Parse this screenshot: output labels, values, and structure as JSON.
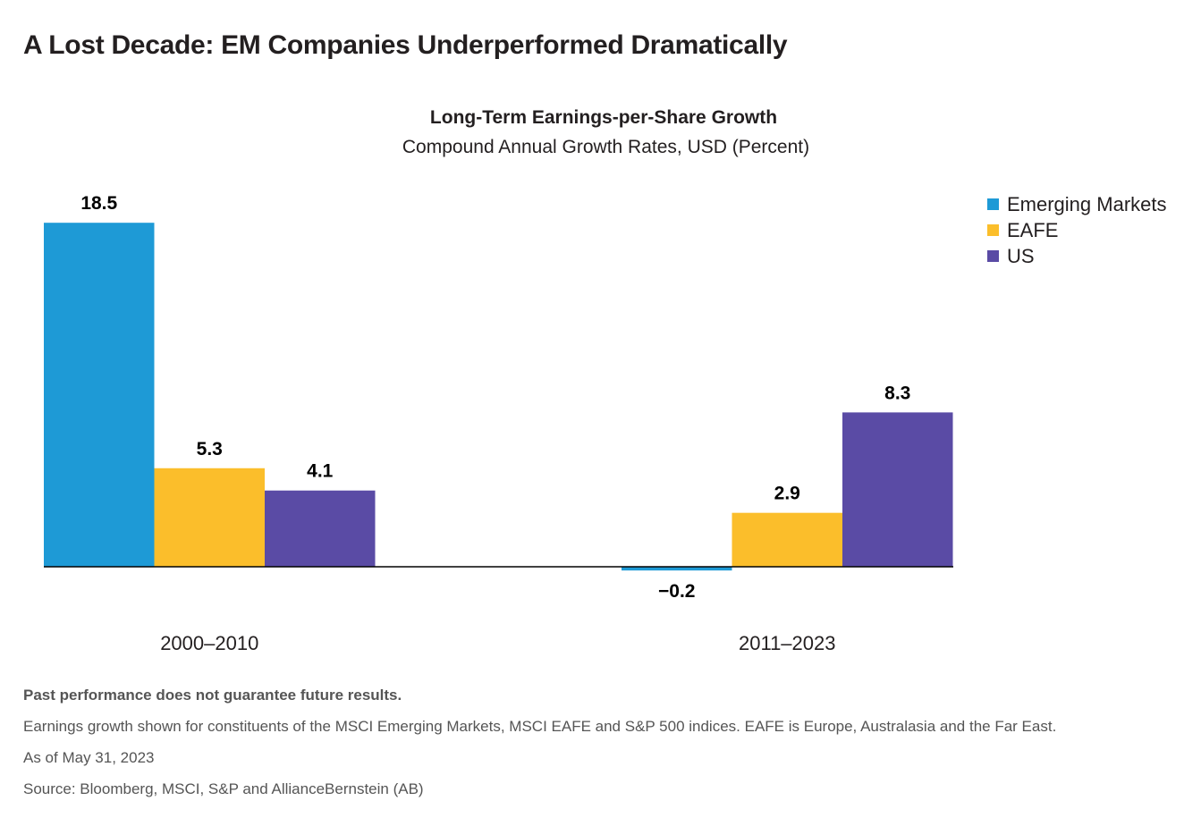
{
  "headline": "A Lost Decade: EM Companies Underperformed Dramatically",
  "chart_data": {
    "type": "bar",
    "title": "Long-Term Earnings-per-Share Growth",
    "subtitle": "Compound Annual Growth Rates, USD (Percent)",
    "categories": [
      "2000–2010",
      "2011–2023"
    ],
    "series": [
      {
        "name": "Emerging Markets",
        "color": "#1e9ad6",
        "values": [
          18.5,
          -0.2
        ],
        "labels": [
          "18.5",
          "−0.2"
        ]
      },
      {
        "name": "EAFE",
        "color": "#fbbe2b",
        "values": [
          5.3,
          2.9
        ],
        "labels": [
          "5.3",
          "2.9"
        ]
      },
      {
        "name": "US",
        "color": "#5a4ba5",
        "values": [
          4.1,
          8.3
        ],
        "labels": [
          "4.1",
          "8.3"
        ]
      }
    ],
    "legend_position": "top-right",
    "grid": false,
    "show_y_axis": false
  },
  "notes": {
    "disclaimer": "Past performance does not guarantee future results.",
    "description": "Earnings growth shown for constituents of the MSCI Emerging Markets, MSCI EAFE and S&P 500 indices. EAFE is Europe, Australasia and the Far East.",
    "as_of": "As of May 31, 2023",
    "source": "Source: Bloomberg, MSCI, S&P and AllianceBernstein (AB)"
  }
}
